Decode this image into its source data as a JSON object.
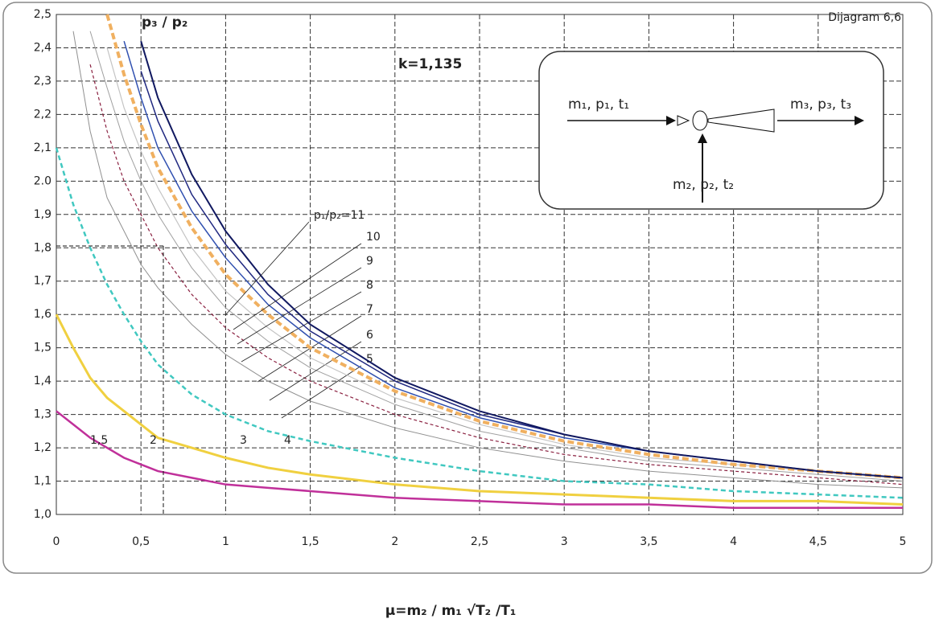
{
  "chart_data": {
    "type": "line",
    "title": "Dijagram 6,6",
    "subtitle": "k=1,135",
    "y_label": "p₃ / p₂",
    "x_label": "μ=m₂ / m₁ √T₂ /T₁",
    "diagram": {
      "inlet_primary": "m₁, p₁, t₁",
      "outlet": "m₃, p₃, t₃",
      "inlet_secondary": "m₂, p₂, t₂"
    },
    "x": [
      0,
      0.1,
      0.2,
      0.3,
      0.4,
      0.5,
      0.6,
      0.8,
      1,
      1.25,
      1.5,
      2,
      2.5,
      3,
      3.5,
      4,
      4.5,
      5
    ],
    "xlim": [
      0,
      5
    ],
    "xticks": [
      0,
      {
        "value": 0.5,
        "label": "0,5"
      },
      1,
      {
        "value": 1.5,
        "label": "1,5"
      },
      2,
      {
        "value": 2.5,
        "label": "2,5"
      },
      3,
      {
        "value": 3.5,
        "label": "3,5"
      },
      4,
      {
        "value": 4.5,
        "label": "4,5"
      },
      5
    ],
    "ylim": [
      1.0,
      2.5
    ],
    "yticks": [
      {
        "value": 1.0,
        "label": "1,0"
      },
      {
        "value": 1.1,
        "label": "1,1"
      },
      {
        "value": 1.2,
        "label": "1,2"
      },
      {
        "value": 1.3,
        "label": "1,3"
      },
      {
        "value": 1.4,
        "label": "1,4"
      },
      {
        "value": 1.5,
        "label": "1,5"
      },
      {
        "value": 1.6,
        "label": "1,6"
      },
      {
        "value": 1.7,
        "label": "1,7"
      },
      {
        "value": 1.8,
        "label": "1,8"
      },
      {
        "value": 1.9,
        "label": "1,9"
      },
      {
        "value": 2.0,
        "label": "2.0"
      },
      {
        "value": 2.1,
        "label": "2,1"
      },
      {
        "value": 2.2,
        "label": "2,2"
      },
      {
        "value": 2.3,
        "label": "2,3"
      },
      {
        "value": 2.4,
        "label": "2,4"
      },
      {
        "value": 2.5,
        "label": "2,5"
      }
    ],
    "grid": true,
    "series": [
      {
        "name": "1,5",
        "color": "#c0309a",
        "values": [
          1.31,
          1.27,
          1.23,
          1.2,
          1.17,
          1.15,
          1.13,
          1.11,
          1.09,
          1.08,
          1.07,
          1.05,
          1.04,
          1.03,
          1.03,
          1.02,
          1.02,
          1.02
        ]
      },
      {
        "name": "2",
        "color": "#f0d040",
        "values": [
          1.6,
          1.5,
          1.41,
          1.35,
          1.31,
          1.27,
          1.23,
          1.2,
          1.17,
          1.14,
          1.12,
          1.09,
          1.07,
          1.06,
          1.05,
          1.04,
          1.04,
          1.03
        ]
      },
      {
        "name": "3",
        "color": "#40c8c0",
        "values": [
          2.1,
          1.93,
          1.8,
          1.69,
          1.6,
          1.52,
          1.45,
          1.36,
          1.3,
          1.25,
          1.22,
          1.17,
          1.13,
          1.1,
          1.09,
          1.07,
          1.06,
          1.05
        ]
      },
      {
        "name": "4",
        "color": "#909090",
        "values": [
          null,
          2.45,
          2.15,
          1.95,
          1.85,
          1.75,
          1.68,
          1.57,
          1.48,
          1.4,
          1.34,
          1.26,
          1.2,
          1.16,
          1.13,
          1.11,
          1.09,
          1.08
        ]
      },
      {
        "name": "5",
        "color": "#8a2040",
        "values": [
          null,
          null,
          2.35,
          2.15,
          2.0,
          1.9,
          1.8,
          1.66,
          1.56,
          1.47,
          1.4,
          1.3,
          1.23,
          1.18,
          1.15,
          1.13,
          1.11,
          1.09
        ]
      },
      {
        "name": "6",
        "color": "#a0a0a0",
        "values": [
          null,
          null,
          2.45,
          2.28,
          2.12,
          2.0,
          1.9,
          1.74,
          1.62,
          1.52,
          1.44,
          1.33,
          1.25,
          1.2,
          1.16,
          1.14,
          1.12,
          1.1
        ]
      },
      {
        "name": "7",
        "color": "#c4c4c4",
        "values": [
          null,
          null,
          null,
          2.4,
          2.22,
          2.09,
          1.98,
          1.8,
          1.67,
          1.56,
          1.47,
          1.35,
          1.27,
          1.21,
          1.17,
          1.15,
          1.13,
          1.11
        ]
      },
      {
        "name": "8",
        "color": "#f0b060",
        "values": [
          null,
          null,
          null,
          2.5,
          2.32,
          2.17,
          2.04,
          1.86,
          1.72,
          1.6,
          1.5,
          1.37,
          1.28,
          1.22,
          1.18,
          1.15,
          1.13,
          1.11
        ]
      },
      {
        "name": "9",
        "color": "#3050b0",
        "values": [
          null,
          null,
          null,
          null,
          2.42,
          2.25,
          2.1,
          1.91,
          1.77,
          1.63,
          1.53,
          1.38,
          1.29,
          1.23,
          1.19,
          1.16,
          1.13,
          1.11
        ]
      },
      {
        "name": "10",
        "color": "#202880",
        "values": [
          null,
          null,
          null,
          null,
          null,
          2.33,
          2.18,
          1.96,
          1.81,
          1.66,
          1.55,
          1.4,
          1.3,
          1.24,
          1.19,
          1.16,
          1.13,
          1.11
        ]
      },
      {
        "name": "p₁/p₂=11",
        "color": "#101860",
        "values": [
          null,
          null,
          null,
          null,
          null,
          2.42,
          2.25,
          2.02,
          1.85,
          1.69,
          1.57,
          1.41,
          1.31,
          1.24,
          1.19,
          1.16,
          1.13,
          1.11
        ]
      }
    ]
  }
}
